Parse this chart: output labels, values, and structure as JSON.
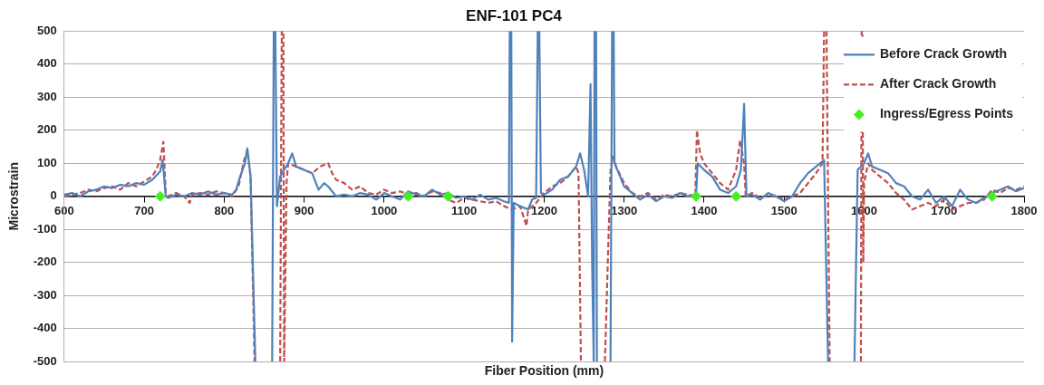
{
  "chart_data": {
    "type": "line",
    "title": "ENF-101 PC4",
    "xlabel": "Fiber Position (mm)",
    "ylabel": "Microstrain",
    "xlim": [
      600,
      1800
    ],
    "xticks": [
      600,
      700,
      800,
      900,
      1000,
      1100,
      1200,
      1300,
      1400,
      1500,
      1600,
      1700,
      1800
    ],
    "ylim": [
      -500,
      500
    ],
    "yticks": [
      -500,
      -400,
      -300,
      -200,
      -100,
      0,
      100,
      200,
      300,
      400,
      500
    ],
    "grid": "y",
    "legend": "top right",
    "series": [
      {
        "name": "Before Crack Growth",
        "type": "line",
        "color": "#4f81bd",
        "line_style": "solid",
        "marker": "none",
        "x": [
          600,
          610,
          620,
          630,
          640,
          650,
          660,
          670,
          680,
          690,
          700,
          710,
          720,
          723,
          727,
          730,
          740,
          750,
          760,
          770,
          780,
          790,
          800,
          810,
          815,
          820,
          826,
          829,
          833,
          839,
          850,
          860,
          862,
          864,
          866,
          870,
          880,
          885,
          890,
          900,
          910,
          918,
          925,
          930,
          940,
          950,
          960,
          970,
          980,
          990,
          1000,
          1010,
          1020,
          1030,
          1040,
          1050,
          1060,
          1070,
          1080,
          1090,
          1100,
          1110,
          1120,
          1130,
          1140,
          1150,
          1156,
          1157,
          1159,
          1160,
          1162,
          1170,
          1180,
          1185,
          1190,
          1192,
          1194,
          1196,
          1200,
          1210,
          1220,
          1230,
          1240,
          1245,
          1250,
          1255,
          1258,
          1260,
          1262,
          1263,
          1265,
          1266,
          1275,
          1283,
          1285,
          1287,
          1288,
          1295,
          1300,
          1310,
          1320,
          1330,
          1340,
          1350,
          1360,
          1370,
          1380,
          1390,
          1392,
          1400,
          1410,
          1420,
          1430,
          1440,
          1446,
          1450,
          1453,
          1460,
          1470,
          1480,
          1490,
          1500,
          1510,
          1520,
          1530,
          1540,
          1550,
          1555,
          1570,
          1588,
          1590,
          1592,
          1600,
          1605,
          1610,
          1620,
          1630,
          1640,
          1650,
          1660,
          1670,
          1680,
          1690,
          1700,
          1710,
          1720,
          1730,
          1740,
          1750,
          1760,
          1770,
          1780,
          1790,
          1800
        ],
        "values": [
          5,
          10,
          0,
          15,
          20,
          30,
          25,
          35,
          30,
          40,
          35,
          50,
          75,
          110,
          0,
          -5,
          5,
          0,
          10,
          5,
          15,
          5,
          10,
          5,
          20,
          60,
          100,
          145,
          60,
          -500,
          null,
          -500,
          500,
          500,
          -30,
          60,
          100,
          130,
          90,
          80,
          70,
          20,
          40,
          30,
          0,
          5,
          0,
          10,
          5,
          -10,
          10,
          0,
          -10,
          15,
          5,
          0,
          20,
          5,
          10,
          -5,
          0,
          -10,
          5,
          -10,
          -5,
          -15,
          -20,
          500,
          500,
          -440,
          -20,
          -30,
          -40,
          -10,
          -5,
          500,
          500,
          10,
          5,
          20,
          50,
          60,
          90,
          130,
          80,
          0,
          340,
          -200,
          -500,
          500,
          500,
          -500,
          null,
          -500,
          500,
          500,
          100,
          60,
          30,
          10,
          -10,
          5,
          -15,
          0,
          -5,
          10,
          0,
          5,
          100,
          80,
          60,
          20,
          10,
          30,
          80,
          280,
          0,
          5,
          -10,
          10,
          0,
          -15,
          0,
          40,
          70,
          90,
          110,
          -500,
          null,
          -500,
          -200,
          80,
          100,
          130,
          90,
          80,
          70,
          40,
          30,
          0,
          -10,
          20,
          -20,
          0,
          -30,
          20,
          -10,
          -20,
          -5,
          10,
          20,
          30,
          15,
          25
        ]
      },
      {
        "name": "After Crack Growth",
        "type": "line",
        "color": "#c0504d",
        "line_style": "dashed",
        "marker": "none",
        "x": [
          600,
          610,
          620,
          630,
          640,
          650,
          660,
          670,
          680,
          690,
          700,
          710,
          715,
          720,
          724,
          727,
          730,
          740,
          750,
          757,
          760,
          770,
          780,
          790,
          800,
          810,
          818,
          825,
          829,
          833,
          838,
          855,
          870,
          872,
          874,
          875,
          878,
          880,
          890,
          900,
          910,
          920,
          930,
          935,
          940,
          950,
          960,
          970,
          980,
          990,
          1000,
          1010,
          1020,
          1030,
          1040,
          1050,
          1060,
          1070,
          1080,
          1090,
          1100,
          1110,
          1120,
          1130,
          1140,
          1150,
          1160,
          1170,
          1178,
          1180,
          1190,
          1200,
          1210,
          1220,
          1230,
          1240,
          1243,
          1246,
          1260,
          1276,
          1283,
          1286,
          1290,
          1300,
          1310,
          1320,
          1330,
          1340,
          1350,
          1360,
          1370,
          1380,
          1389,
          1391,
          1395,
          1400,
          1410,
          1420,
          1430,
          1440,
          1445,
          1450,
          1452,
          1460,
          1470,
          1480,
          1490,
          1500,
          1510,
          1520,
          1530,
          1540,
          1548,
          1550,
          1553,
          1557,
          1575,
          1596,
          1597,
          1598,
          1599,
          1600,
          1605,
          1610,
          1620,
          1630,
          1640,
          1650,
          1660,
          1670,
          1680,
          1690,
          1700,
          1710,
          1720,
          1730,
          1740,
          1750,
          1760,
          1770,
          1780,
          1790,
          1800
        ],
        "values": [
          0,
          5,
          10,
          20,
          15,
          25,
          30,
          20,
          40,
          30,
          45,
          60,
          80,
          110,
          165,
          10,
          0,
          10,
          0,
          -20,
          5,
          10,
          5,
          15,
          10,
          0,
          30,
          110,
          140,
          60,
          -500,
          null,
          -500,
          500,
          500,
          -500,
          40,
          100,
          90,
          80,
          70,
          90,
          100,
          70,
          50,
          40,
          20,
          30,
          10,
          5,
          20,
          10,
          15,
          5,
          10,
          0,
          15,
          10,
          -10,
          -20,
          -5,
          -10,
          -15,
          -20,
          -15,
          -30,
          -40,
          -30,
          -90,
          -40,
          -20,
          10,
          30,
          40,
          60,
          90,
          70,
          -500,
          null,
          -500,
          80,
          120,
          90,
          40,
          10,
          0,
          10,
          -10,
          5,
          0,
          10,
          5,
          0,
          200,
          130,
          100,
          70,
          40,
          20,
          80,
          170,
          100,
          0,
          10,
          -5,
          5,
          0,
          -10,
          0,
          10,
          40,
          70,
          100,
          500,
          500,
          -500,
          null,
          -500,
          500,
          500,
          -200,
          40,
          100,
          80,
          60,
          40,
          10,
          -10,
          -40,
          -30,
          -20,
          -30,
          -10,
          -40,
          -30,
          -20,
          -20,
          -10,
          20,
          10,
          25,
          20,
          30
        ]
      },
      {
        "name": "Ingress/Egress Points",
        "type": "scatter",
        "color": "#44ee22",
        "marker": "diamond",
        "x": [
          720,
          1030,
          1080,
          1390,
          1440,
          1760
        ],
        "values": [
          0,
          0,
          0,
          0,
          0,
          0
        ]
      }
    ]
  }
}
